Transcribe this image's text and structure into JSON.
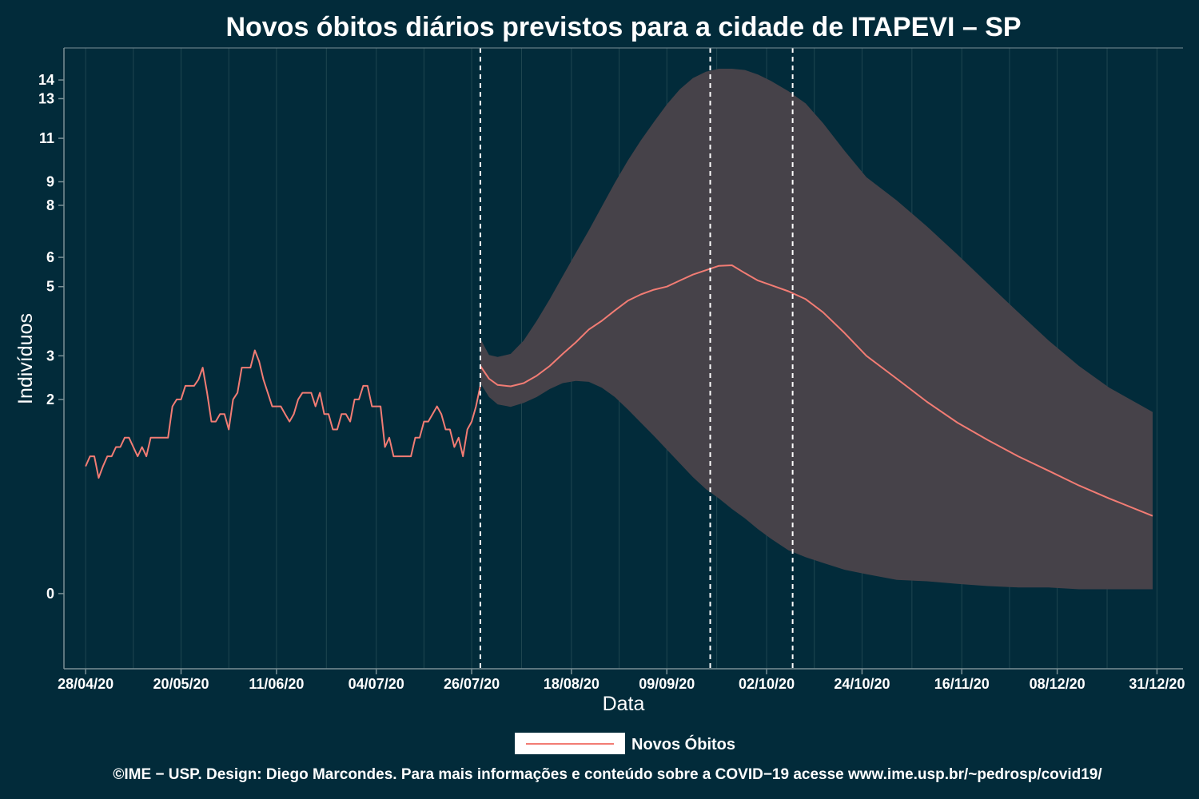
{
  "chart_data": {
    "type": "line",
    "title": "Novos óbitos diários previstos para a cidade de ITAPEVI – SP",
    "xlabel": "Data",
    "ylabel": "Indivíduos",
    "x_scale": "date",
    "y_scale": "sqrt",
    "xlim": [
      "2020-04-23",
      "2021-01-06"
    ],
    "ylim": [
      -0.3,
      15.8
    ],
    "x_ticks": [
      "28/04/20",
      "20/05/20",
      "11/06/20",
      "04/07/20",
      "26/07/20",
      "18/08/20",
      "09/09/20",
      "02/10/20",
      "24/10/20",
      "16/11/20",
      "08/12/20",
      "31/12/20"
    ],
    "x_tick_dates": [
      "2020-04-28",
      "2020-05-20",
      "2020-06-11",
      "2020-07-04",
      "2020-07-26",
      "2020-08-18",
      "2020-09-09",
      "2020-10-02",
      "2020-10-24",
      "2020-11-16",
      "2020-12-08",
      "2020-12-31"
    ],
    "y_ticks": [
      0,
      2,
      3,
      5,
      6,
      8,
      9,
      11,
      13,
      14
    ],
    "grid": true,
    "legend_position": "bottom",
    "vlines": [
      "2020-07-28",
      "2020-09-19",
      "2020-10-08"
    ],
    "colors": {
      "background": "#022b3a",
      "line": "#f27c74",
      "band": "#464249",
      "grid": "#1f4650",
      "axis": "#7a8f95",
      "vline": "#ffffff"
    },
    "series": [
      {
        "name": "Novos Óbitos",
        "kind": "observed",
        "x": [
          "2020-04-28",
          "2020-04-29",
          "2020-04-30",
          "2020-05-01",
          "2020-05-02",
          "2020-05-03",
          "2020-05-04",
          "2020-05-05",
          "2020-05-06",
          "2020-05-07",
          "2020-05-08",
          "2020-05-09",
          "2020-05-10",
          "2020-05-11",
          "2020-05-12",
          "2020-05-13",
          "2020-05-14",
          "2020-05-15",
          "2020-05-16",
          "2020-05-17",
          "2020-05-18",
          "2020-05-19",
          "2020-05-20",
          "2020-05-21",
          "2020-05-22",
          "2020-05-23",
          "2020-05-24",
          "2020-05-25",
          "2020-05-26",
          "2020-05-27",
          "2020-05-28",
          "2020-05-29",
          "2020-05-30",
          "2020-05-31",
          "2020-06-01",
          "2020-06-02",
          "2020-06-03",
          "2020-06-04",
          "2020-06-05",
          "2020-06-06",
          "2020-06-07",
          "2020-06-08",
          "2020-06-09",
          "2020-06-10",
          "2020-06-11",
          "2020-06-12",
          "2020-06-13",
          "2020-06-14",
          "2020-06-15",
          "2020-06-16",
          "2020-06-17",
          "2020-06-18",
          "2020-06-19",
          "2020-06-20",
          "2020-06-21",
          "2020-06-22",
          "2020-06-23",
          "2020-06-24",
          "2020-06-25",
          "2020-06-26",
          "2020-06-27",
          "2020-06-28",
          "2020-06-29",
          "2020-06-30",
          "2020-07-01",
          "2020-07-02",
          "2020-07-03",
          "2020-07-04",
          "2020-07-05",
          "2020-07-06",
          "2020-07-07",
          "2020-07-08",
          "2020-07-09",
          "2020-07-10",
          "2020-07-11",
          "2020-07-12",
          "2020-07-13",
          "2020-07-14",
          "2020-07-15",
          "2020-07-16",
          "2020-07-17",
          "2020-07-18",
          "2020-07-19",
          "2020-07-20",
          "2020-07-21",
          "2020-07-22",
          "2020-07-23",
          "2020-07-24",
          "2020-07-25",
          "2020-07-26",
          "2020-07-27",
          "2020-07-28"
        ],
        "y": [
          0.86,
          1.0,
          1.0,
          0.71,
          0.86,
          1.0,
          1.0,
          1.14,
          1.14,
          1.29,
          1.29,
          1.14,
          1.0,
          1.14,
          1.0,
          1.29,
          1.29,
          1.29,
          1.29,
          1.29,
          1.86,
          2.0,
          2.0,
          2.29,
          2.29,
          2.29,
          2.43,
          2.71,
          2.14,
          1.57,
          1.57,
          1.71,
          1.71,
          1.43,
          2.0,
          2.14,
          2.71,
          2.71,
          2.71,
          3.14,
          2.86,
          2.43,
          2.14,
          1.86,
          1.86,
          1.86,
          1.71,
          1.57,
          1.71,
          2.0,
          2.14,
          2.14,
          2.14,
          1.86,
          2.14,
          1.71,
          1.71,
          1.43,
          1.43,
          1.71,
          1.71,
          1.57,
          2.0,
          2.0,
          2.29,
          2.29,
          1.86,
          1.86,
          1.86,
          1.14,
          1.29,
          1.0,
          1.0,
          1.0,
          1.0,
          1.0,
          1.29,
          1.29,
          1.57,
          1.57,
          1.71,
          1.86,
          1.71,
          1.43,
          1.43,
          1.14,
          1.29,
          1.0,
          1.43,
          1.57,
          1.86,
          2.29
        ]
      },
      {
        "name": "Novos Óbitos",
        "kind": "forecast",
        "x": [
          "2020-07-28",
          "2020-07-30",
          "2020-08-01",
          "2020-08-04",
          "2020-08-07",
          "2020-08-10",
          "2020-08-13",
          "2020-08-16",
          "2020-08-19",
          "2020-08-22",
          "2020-08-25",
          "2020-08-28",
          "2020-08-31",
          "2020-09-03",
          "2020-09-06",
          "2020-09-09",
          "2020-09-12",
          "2020-09-15",
          "2020-09-18",
          "2020-09-21",
          "2020-09-24",
          "2020-09-27",
          "2020-09-30",
          "2020-10-03",
          "2020-10-07",
          "2020-10-11",
          "2020-10-15",
          "2020-10-20",
          "2020-10-25",
          "2020-11-01",
          "2020-11-08",
          "2020-11-15",
          "2020-11-22",
          "2020-11-29",
          "2020-12-06",
          "2020-12-13",
          "2020-12-20",
          "2020-12-30"
        ],
        "y": [
          2.75,
          2.45,
          2.31,
          2.28,
          2.35,
          2.52,
          2.75,
          3.05,
          3.35,
          3.7,
          3.95,
          4.25,
          4.55,
          4.75,
          4.9,
          5.0,
          5.2,
          5.4,
          5.55,
          5.7,
          5.72,
          5.45,
          5.2,
          5.05,
          4.85,
          4.6,
          4.2,
          3.6,
          3.0,
          2.45,
          1.95,
          1.55,
          1.25,
          1.0,
          0.8,
          0.62,
          0.48,
          0.32
        ]
      }
    ],
    "band": {
      "x": [
        "2020-07-28",
        "2020-07-30",
        "2020-08-01",
        "2020-08-04",
        "2020-08-07",
        "2020-08-10",
        "2020-08-13",
        "2020-08-16",
        "2020-08-19",
        "2020-08-22",
        "2020-08-25",
        "2020-08-28",
        "2020-08-31",
        "2020-09-03",
        "2020-09-06",
        "2020-09-09",
        "2020-09-12",
        "2020-09-15",
        "2020-09-18",
        "2020-09-21",
        "2020-09-24",
        "2020-09-27",
        "2020-09-30",
        "2020-10-03",
        "2020-10-07",
        "2020-10-11",
        "2020-10-15",
        "2020-10-20",
        "2020-10-25",
        "2020-11-01",
        "2020-11-08",
        "2020-11-15",
        "2020-11-22",
        "2020-11-29",
        "2020-12-06",
        "2020-12-13",
        "2020-12-20",
        "2020-12-30"
      ],
      "lower": [
        2.35,
        2.05,
        1.9,
        1.85,
        1.93,
        2.05,
        2.22,
        2.35,
        2.4,
        2.38,
        2.25,
        2.05,
        1.8,
        1.55,
        1.32,
        1.1,
        0.9,
        0.72,
        0.58,
        0.48,
        0.38,
        0.3,
        0.22,
        0.16,
        0.1,
        0.07,
        0.05,
        0.03,
        0.02,
        0.01,
        0.008,
        0.005,
        0.003,
        0.002,
        0.002,
        0.001,
        0.001,
        0.001
      ],
      "upper": [
        3.45,
        3.02,
        2.97,
        3.05,
        3.4,
        3.95,
        4.6,
        5.35,
        6.15,
        7.0,
        7.95,
        8.95,
        9.95,
        10.9,
        11.8,
        12.7,
        13.5,
        14.1,
        14.45,
        14.62,
        14.62,
        14.55,
        14.3,
        13.95,
        13.4,
        12.75,
        11.75,
        10.4,
        9.2,
        8.2,
        7.15,
        6.1,
        5.1,
        4.2,
        3.4,
        2.75,
        2.25,
        1.75
      ]
    }
  },
  "legend": {
    "label": "Novos Óbitos"
  },
  "caption": "©IME − USP. Design: Diego Marcondes. Para mais informações e conteúdo sobre a COVID−19 acesse www.ime.usp.br/~pedrosp/covid19/"
}
